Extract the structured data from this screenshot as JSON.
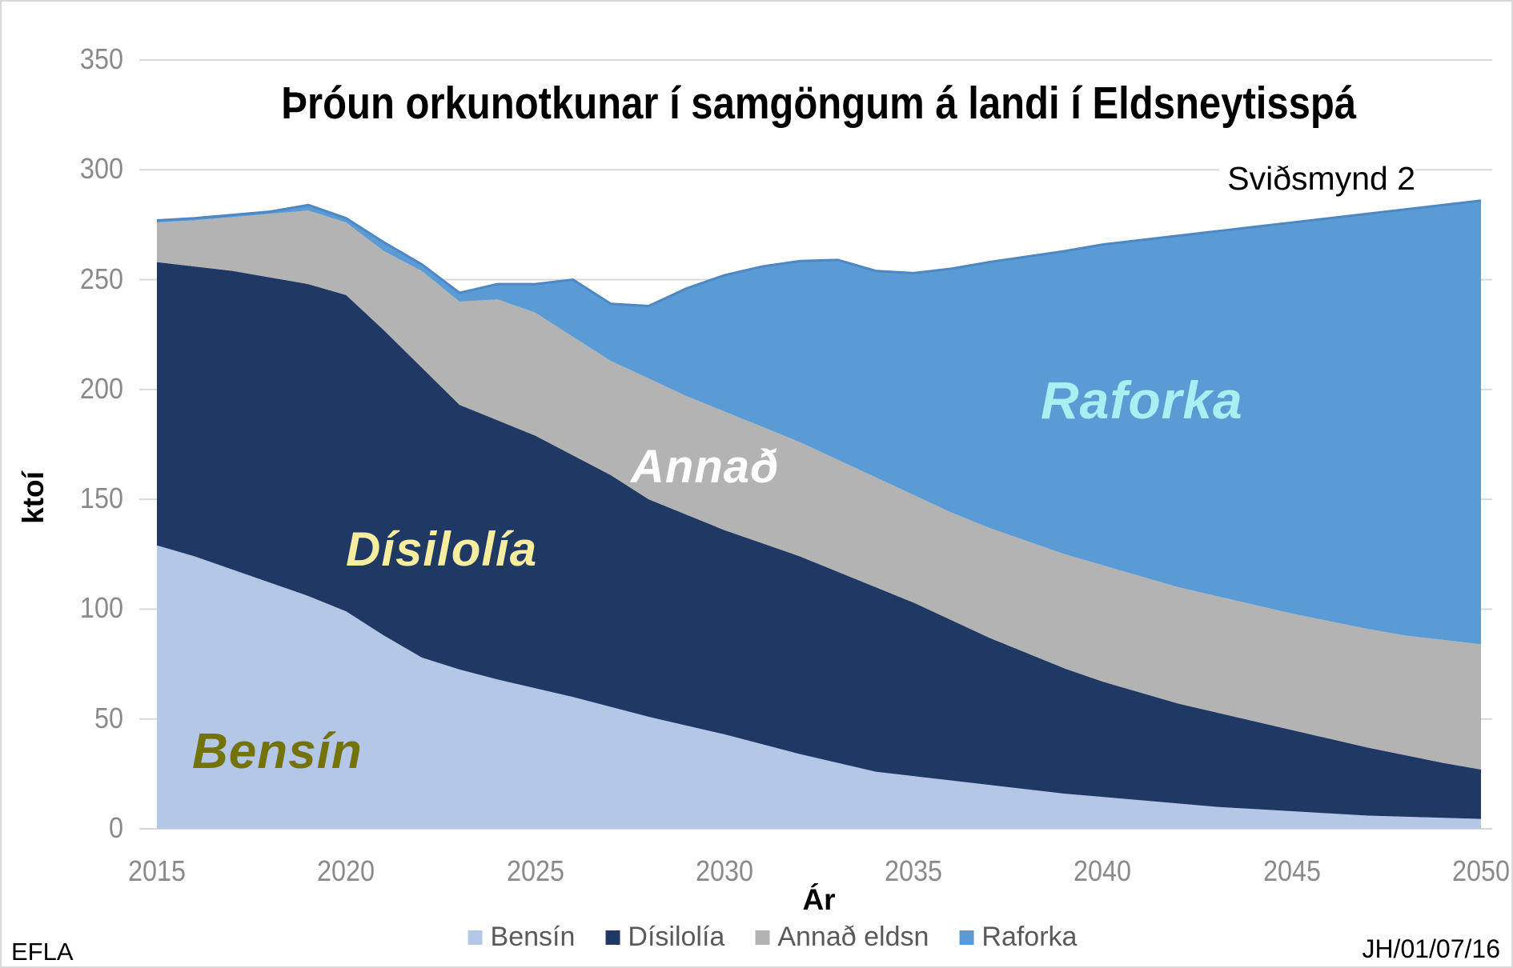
{
  "title": "Þróun orkunotkunar í samgöngum á landi í Eldsneytisspá",
  "subtitle": "Sviðsmynd 2",
  "footer": {
    "left": "EFLA",
    "right": "JH/01/07/16"
  },
  "colors": {
    "grid": "#d9d9d9",
    "tick_label": "#8a8a8a",
    "legend_text": "#595959",
    "raforka_edge_line": "#4d88c4"
  },
  "chart_data": {
    "type": "area",
    "stacked": true,
    "title": "Þróun orkunotkunar í samgöngum á landi í Eldsneytisspá",
    "subtitle": "Sviðsmynd 2",
    "xlabel": "Ár",
    "ylabel": "ktoí",
    "ylim": [
      0,
      350
    ],
    "ytick_step": 50,
    "grid": true,
    "legend_position": "bottom",
    "x": [
      2015,
      2016,
      2017,
      2018,
      2019,
      2020,
      2021,
      2022,
      2023,
      2024,
      2025,
      2026,
      2027,
      2028,
      2029,
      2030,
      2031,
      2032,
      2033,
      2034,
      2035,
      2036,
      2037,
      2038,
      2039,
      2040,
      2041,
      2042,
      2043,
      2044,
      2045,
      2046,
      2047,
      2048,
      2049,
      2050
    ],
    "xticks": [
      2015,
      2020,
      2025,
      2030,
      2035,
      2040,
      2045,
      2050
    ],
    "series": [
      {
        "name": "Bensín",
        "color": "#b4c7e7",
        "values": [
          129,
          124,
          118,
          112,
          106,
          99,
          88,
          78,
          72.5,
          68,
          64,
          60,
          55.5,
          51,
          47,
          43,
          38.5,
          34,
          30,
          26,
          24,
          22,
          20,
          18,
          16,
          14.5,
          13,
          11.5,
          10,
          9,
          8,
          7,
          6,
          5.5,
          5,
          4.5
        ]
      },
      {
        "name": "Dísilolía",
        "color": "#1f3864",
        "values": [
          129,
          132,
          136,
          139,
          142,
          144,
          139,
          132,
          120.5,
          118,
          115,
          110,
          105.5,
          99,
          96,
          93,
          91.5,
          90,
          87,
          84,
          79,
          73,
          67,
          62,
          57,
          52.5,
          49,
          45.5,
          43,
          40,
          37,
          34,
          31,
          28,
          25,
          22.5
        ]
      },
      {
        "name": "Annað eldsn",
        "color": "#b3b3b3",
        "values": [
          18,
          21,
          24.5,
          29,
          33.5,
          33,
          36,
          44,
          47,
          55,
          56,
          54,
          52,
          55,
          54,
          54,
          53,
          52,
          51,
          50,
          49,
          49,
          50,
          51,
          52,
          53,
          53,
          53,
          53,
          53,
          53,
          53.5,
          54,
          54.5,
          56,
          57
        ]
      },
      {
        "name": "Raforka",
        "color": "#5b9bd5",
        "values": [
          1,
          1,
          1,
          1,
          2.5,
          2,
          4,
          3,
          4,
          7,
          13,
          26,
          26,
          33,
          49,
          62,
          73,
          82.5,
          91,
          94,
          101,
          111,
          121,
          129.5,
          138,
          146,
          153,
          160,
          166,
          172,
          178,
          183.5,
          189,
          194,
          198,
          202
        ]
      }
    ],
    "area_labels": [
      {
        "text": "Bensín",
        "color": "#73730a"
      },
      {
        "text": "Dísilolía",
        "color": "#f6eda0"
      },
      {
        "text": "Annað",
        "color": "#ffffff"
      },
      {
        "text": "Raforka",
        "color": "#a9eef2"
      }
    ]
  }
}
